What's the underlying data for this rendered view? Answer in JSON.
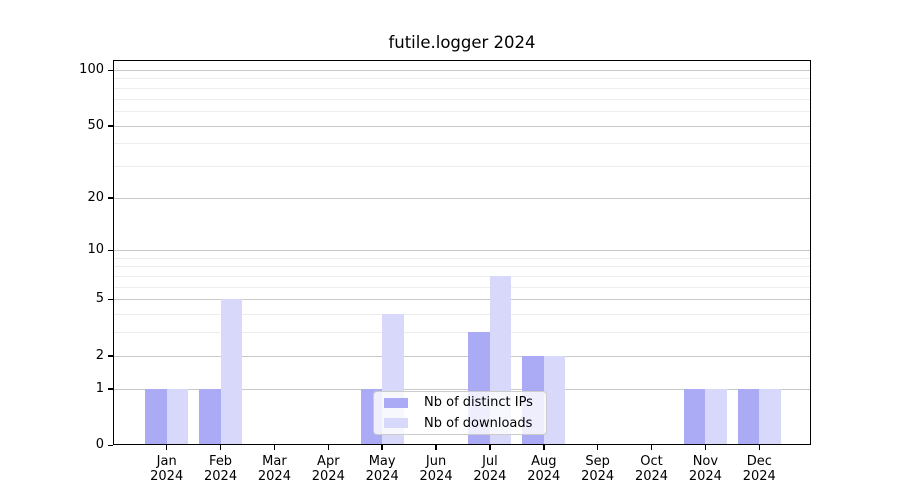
{
  "title": "futile.logger 2024",
  "chart_data": {
    "type": "bar",
    "title": "futile.logger 2024",
    "categories": [
      "Jan",
      "Feb",
      "Mar",
      "Apr",
      "May",
      "Jun",
      "Jul",
      "Aug",
      "Sep",
      "Oct",
      "Nov",
      "Dec"
    ],
    "x_tick_line2": "2024",
    "series": [
      {
        "name": "Nb of distinct IPs",
        "color": "#aaaaf5",
        "values": [
          1,
          1,
          0,
          0,
          1,
          0,
          3,
          2,
          0,
          0,
          1,
          1
        ]
      },
      {
        "name": "Nb of downloads",
        "color": "#d8d8fa",
        "values": [
          1,
          5,
          0,
          0,
          4,
          0,
          7,
          2,
          0,
          0,
          1,
          1
        ]
      }
    ],
    "yscale": "log1p",
    "yticks": [
      0,
      1,
      2,
      5,
      10,
      20,
      50,
      100
    ],
    "minor_yticks": [
      3,
      4,
      6,
      7,
      8,
      9,
      30,
      40,
      60,
      70,
      80,
      90
    ],
    "ylim": [
      0,
      113
    ],
    "grid": true,
    "legend_position": "lower center"
  },
  "colors": {
    "bar_dark": "#aaaaf5",
    "bar_light": "#d8d8fa",
    "grid_major": "#c9c9c9",
    "grid_minor": "#ededed",
    "frame": "#000000",
    "background": "#ffffff"
  }
}
